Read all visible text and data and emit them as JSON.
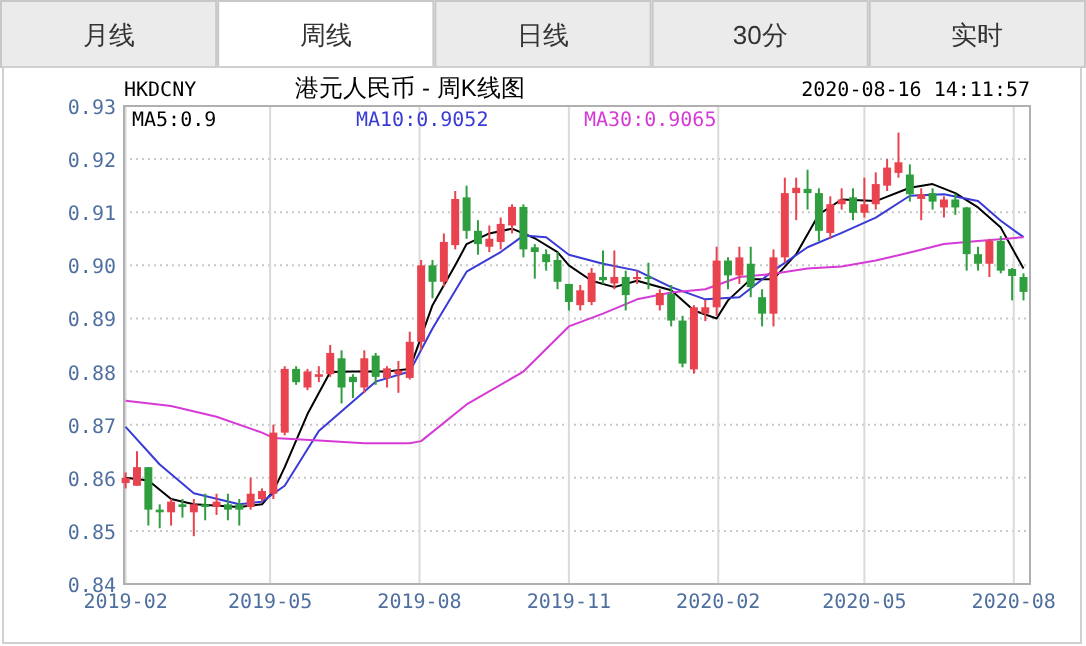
{
  "chart_data": {
    "type": "candlestick",
    "title": "港元人民币 - 周K线图",
    "annotations": [
      "月线",
      "周线",
      "日线",
      "30分",
      "实时",
      "HKDCNY",
      "2020-08-16 14:11:57"
    ],
    "x": [
      "2019-02-01",
      "2019-02-08",
      "2019-02-15",
      "2019-02-22",
      "2019-03-01",
      "2019-03-08",
      "2019-03-15",
      "2019-03-22",
      "2019-03-29",
      "2019-04-05",
      "2019-04-12",
      "2019-04-19",
      "2019-04-26",
      "2019-05-03",
      "2019-05-10",
      "2019-05-17",
      "2019-05-24",
      "2019-05-31",
      "2019-06-07",
      "2019-06-14",
      "2019-06-21",
      "2019-06-28",
      "2019-07-05",
      "2019-07-12",
      "2019-07-19",
      "2019-07-26",
      "2019-08-02",
      "2019-08-09",
      "2019-08-16",
      "2019-08-23",
      "2019-08-30",
      "2019-09-06",
      "2019-09-13",
      "2019-09-20",
      "2019-09-27",
      "2019-10-04",
      "2019-10-11",
      "2019-10-18",
      "2019-10-25",
      "2019-11-01",
      "2019-11-08",
      "2019-11-15",
      "2019-11-22",
      "2019-11-29",
      "2019-12-06",
      "2019-12-13",
      "2019-12-20",
      "2019-12-27",
      "2020-01-03",
      "2020-01-10",
      "2020-01-17",
      "2020-01-24",
      "2020-01-31",
      "2020-02-07",
      "2020-02-14",
      "2020-02-21",
      "2020-02-28",
      "2020-03-06",
      "2020-03-13",
      "2020-03-20",
      "2020-03-27",
      "2020-04-03",
      "2020-04-10",
      "2020-04-17",
      "2020-04-24",
      "2020-05-01",
      "2020-05-08",
      "2020-05-15",
      "2020-05-22",
      "2020-05-29",
      "2020-06-05",
      "2020-06-12",
      "2020-06-19",
      "2020-06-26",
      "2020-07-03",
      "2020-07-10",
      "2020-07-17",
      "2020-07-24",
      "2020-07-31",
      "2020-08-07"
    ],
    "ohlc": [
      [
        0.859,
        0.861,
        0.858,
        0.86
      ],
      [
        0.8585,
        0.865,
        0.8585,
        0.862
      ],
      [
        0.862,
        0.862,
        0.851,
        0.854
      ],
      [
        0.854,
        0.855,
        0.8505,
        0.8535
      ],
      [
        0.8535,
        0.856,
        0.851,
        0.8555
      ],
      [
        0.855,
        0.856,
        0.8525,
        0.8545
      ],
      [
        0.8535,
        0.856,
        0.849,
        0.855
      ],
      [
        0.855,
        0.857,
        0.852,
        0.8545
      ],
      [
        0.8545,
        0.857,
        0.853,
        0.8555
      ],
      [
        0.855,
        0.857,
        0.852,
        0.854
      ],
      [
        0.855,
        0.856,
        0.851,
        0.854
      ],
      [
        0.8545,
        0.86,
        0.854,
        0.857
      ],
      [
        0.856,
        0.858,
        0.8555,
        0.8575
      ],
      [
        0.857,
        0.87,
        0.856,
        0.8685
      ],
      [
        0.8685,
        0.881,
        0.868,
        0.8805
      ],
      [
        0.8805,
        0.881,
        0.8775,
        0.878
      ],
      [
        0.877,
        0.8805,
        0.8765,
        0.88
      ],
      [
        0.879,
        0.881,
        0.878,
        0.8795
      ],
      [
        0.8795,
        0.885,
        0.879,
        0.8835
      ],
      [
        0.8825,
        0.884,
        0.874,
        0.877
      ],
      [
        0.879,
        0.8795,
        0.875,
        0.878
      ],
      [
        0.877,
        0.884,
        0.876,
        0.8825
      ],
      [
        0.883,
        0.8835,
        0.8775,
        0.879
      ],
      [
        0.8788,
        0.881,
        0.877,
        0.8806
      ],
      [
        0.8795,
        0.882,
        0.876,
        0.8802
      ],
      [
        0.8788,
        0.8875,
        0.8785,
        0.8856
      ],
      [
        0.8856,
        0.901,
        0.884,
        0.9
      ],
      [
        0.9,
        0.901,
        0.8938,
        0.8969
      ],
      [
        0.8969,
        0.906,
        0.896,
        0.9044
      ],
      [
        0.9038,
        0.914,
        0.903,
        0.9125
      ],
      [
        0.9128,
        0.915,
        0.905,
        0.9065
      ],
      [
        0.9065,
        0.9085,
        0.902,
        0.904
      ],
      [
        0.9035,
        0.9075,
        0.9025,
        0.905
      ],
      [
        0.9044,
        0.909,
        0.903,
        0.9078
      ],
      [
        0.9075,
        0.9115,
        0.906,
        0.911
      ],
      [
        0.911,
        0.9115,
        0.9015,
        0.903
      ],
      [
        0.9034,
        0.904,
        0.8975,
        0.9025
      ],
      [
        0.9021,
        0.903,
        0.899,
        0.9006
      ],
      [
        0.901,
        0.9025,
        0.8955,
        0.8969
      ],
      [
        0.8965,
        0.8965,
        0.8915,
        0.8931
      ],
      [
        0.8925,
        0.8963,
        0.8915,
        0.8953
      ],
      [
        0.8931,
        0.8995,
        0.8925,
        0.8986
      ],
      [
        0.8978,
        0.9028,
        0.8965,
        0.8972
      ],
      [
        0.8966,
        0.9028,
        0.8955,
        0.8978
      ],
      [
        0.8978,
        0.899,
        0.8915,
        0.8944
      ],
      [
        0.8974,
        0.899,
        0.8965,
        0.8978
      ],
      [
        0.8978,
        0.9005,
        0.8955,
        0.8975
      ],
      [
        0.8925,
        0.8955,
        0.8915,
        0.8948
      ],
      [
        0.8946,
        0.8963,
        0.8885,
        0.8896
      ],
      [
        0.8896,
        0.8905,
        0.8808,
        0.8815
      ],
      [
        0.8804,
        0.8925,
        0.8796,
        0.8921
      ],
      [
        0.8909,
        0.8935,
        0.8895,
        0.8921
      ],
      [
        0.8921,
        0.9035,
        0.8905,
        0.9009
      ],
      [
        0.9009,
        0.9015,
        0.8955,
        0.8981
      ],
      [
        0.8981,
        0.9035,
        0.8965,
        0.9015
      ],
      [
        0.9003,
        0.9035,
        0.894,
        0.8959
      ],
      [
        0.894,
        0.8955,
        0.8885,
        0.8909
      ],
      [
        0.8909,
        0.903,
        0.8885,
        0.9015
      ],
      [
        0.9015,
        0.9165,
        0.9005,
        0.9136
      ],
      [
        0.9136,
        0.9165,
        0.9085,
        0.9146
      ],
      [
        0.9144,
        0.918,
        0.9105,
        0.9136
      ],
      [
        0.9136,
        0.9145,
        0.9045,
        0.9065
      ],
      [
        0.9061,
        0.913,
        0.905,
        0.9115
      ],
      [
        0.9115,
        0.9145,
        0.9105,
        0.9124
      ],
      [
        0.9128,
        0.9145,
        0.9085,
        0.9099
      ],
      [
        0.9099,
        0.9165,
        0.909,
        0.9115
      ],
      [
        0.9115,
        0.9175,
        0.9105,
        0.9153
      ],
      [
        0.915,
        0.92,
        0.914,
        0.9184
      ],
      [
        0.9174,
        0.925,
        0.9165,
        0.9194
      ],
      [
        0.9171,
        0.919,
        0.912,
        0.9134
      ],
      [
        0.9125,
        0.9145,
        0.9085,
        0.9134
      ],
      [
        0.9136,
        0.9145,
        0.9105,
        0.912
      ],
      [
        0.9109,
        0.913,
        0.909,
        0.9124
      ],
      [
        0.9124,
        0.9135,
        0.9095,
        0.9109
      ],
      [
        0.9109,
        0.911,
        0.899,
        0.9021
      ],
      [
        0.9021,
        0.9035,
        0.899,
        0.9003
      ],
      [
        0.9003,
        0.905,
        0.8978,
        0.9046
      ],
      [
        0.9046,
        0.9055,
        0.8985,
        0.899
      ],
      [
        0.8993,
        0.8995,
        0.8934,
        0.898
      ],
      [
        0.8978,
        0.8985,
        0.8934,
        0.895
      ]
    ],
    "series": [
      {
        "name": "MA5:0.9",
        "type": "line",
        "color": "#000000",
        "x": [
          "2019-02-01",
          "2019-02-15",
          "2019-03-01",
          "2019-03-15",
          "2019-04-12",
          "2019-04-26",
          "2019-05-03",
          "2019-05-10",
          "2019-05-24",
          "2019-06-07",
          "2019-06-21",
          "2019-07-12",
          "2019-07-26",
          "2019-08-09",
          "2019-08-23",
          "2019-08-30",
          "2019-09-13",
          "2019-09-27",
          "2019-10-11",
          "2019-10-25",
          "2019-11-01",
          "2019-11-15",
          "2019-11-29",
          "2019-12-13",
          "2020-01-03",
          "2020-01-17",
          "2020-01-31",
          "2020-02-07",
          "2020-02-21",
          "2020-03-06",
          "2020-03-20",
          "2020-04-03",
          "2020-04-17",
          "2020-05-08",
          "2020-05-29",
          "2020-06-12",
          "2020-06-26",
          "2020-07-10",
          "2020-07-24",
          "2020-08-07"
        ],
        "values": [
          0.86,
          0.8595,
          0.856,
          0.855,
          0.8545,
          0.855,
          0.8575,
          0.862,
          0.872,
          0.8799,
          0.88,
          0.88,
          0.8805,
          0.8925,
          0.9,
          0.904,
          0.906,
          0.9069,
          0.9051,
          0.9025,
          0.9,
          0.8971,
          0.8959,
          0.8971,
          0.8953,
          0.8915,
          0.89,
          0.8934,
          0.8974,
          0.8974,
          0.9021,
          0.9096,
          0.9124,
          0.9121,
          0.9146,
          0.9153,
          0.9136,
          0.9109,
          0.9071,
          0.8994
        ]
      },
      {
        "name": "MA10:0.9052",
        "type": "line",
        "color": "#3a3ad6",
        "x": [
          "2019-02-01",
          "2019-02-22",
          "2019-03-15",
          "2019-04-12",
          "2019-04-26",
          "2019-05-10",
          "2019-05-31",
          "2019-07-05",
          "2019-07-26",
          "2019-08-09",
          "2019-08-30",
          "2019-09-20",
          "2019-10-04",
          "2019-10-18",
          "2019-11-01",
          "2019-11-22",
          "2019-12-13",
          "2020-01-03",
          "2020-01-24",
          "2020-02-14",
          "2020-03-06",
          "2020-03-27",
          "2020-04-17",
          "2020-05-08",
          "2020-05-29",
          "2020-06-19",
          "2020-07-10",
          "2020-07-24",
          "2020-08-07"
        ],
        "values": [
          0.8696,
          0.8625,
          0.8571,
          0.855,
          0.8555,
          0.8585,
          0.8688,
          0.8781,
          0.88,
          0.8881,
          0.8988,
          0.9025,
          0.9056,
          0.9053,
          0.902,
          0.9003,
          0.899,
          0.8959,
          0.8936,
          0.894,
          0.899,
          0.9034,
          0.9061,
          0.909,
          0.9131,
          0.9134,
          0.9121,
          0.9084,
          0.9053
        ]
      },
      {
        "name": "MA30:0.9065",
        "type": "line",
        "color": "#d63ad6",
        "x": [
          "2019-02-01",
          "2019-03-01",
          "2019-03-29",
          "2019-04-26",
          "2019-05-03",
          "2019-05-31",
          "2019-06-28",
          "2019-07-26",
          "2019-08-02",
          "2019-08-30",
          "2019-10-04",
          "2019-11-01",
          "2019-11-22",
          "2019-12-13",
          "2020-01-03",
          "2020-01-24",
          "2020-02-14",
          "2020-03-06",
          "2020-03-27",
          "2020-04-17",
          "2020-05-08",
          "2020-05-29",
          "2020-06-19",
          "2020-07-10",
          "2020-08-07"
        ],
        "values": [
          0.8745,
          0.8735,
          0.8715,
          0.8685,
          0.8675,
          0.867,
          0.8665,
          0.8665,
          0.8669,
          0.8738,
          0.88,
          0.8885,
          0.8909,
          0.8936,
          0.8949,
          0.8955,
          0.8978,
          0.8984,
          0.8994,
          0.8998,
          0.9009,
          0.9024,
          0.904,
          0.9046,
          0.9053
        ]
      }
    ],
    "xlim": [
      "2019-01-31",
      "2020-08-11"
    ],
    "xticks": [
      "2019-02",
      "2019-05",
      "2019-08",
      "2019-11",
      "2020-02",
      "2020-05",
      "2020-08"
    ],
    "ylim": [
      0.84,
      0.93
    ],
    "yticks": [
      {
        "value": 0.84,
        "label": "0.84"
      },
      {
        "value": 0.85,
        "label": "0.85"
      },
      {
        "value": 0.86,
        "label": "0.86"
      },
      {
        "value": 0.87,
        "label": "0.87"
      },
      {
        "value": 0.88,
        "label": "0.88"
      },
      {
        "value": 0.89,
        "label": "0.89"
      },
      {
        "value": 0.9,
        "label": "0.90"
      },
      {
        "value": 0.91,
        "label": "0.91"
      },
      {
        "value": 0.92,
        "label": "0.92"
      },
      {
        "value": 0.93,
        "label": "0.93"
      }
    ],
    "grid": true,
    "legend": "top left"
  }
}
